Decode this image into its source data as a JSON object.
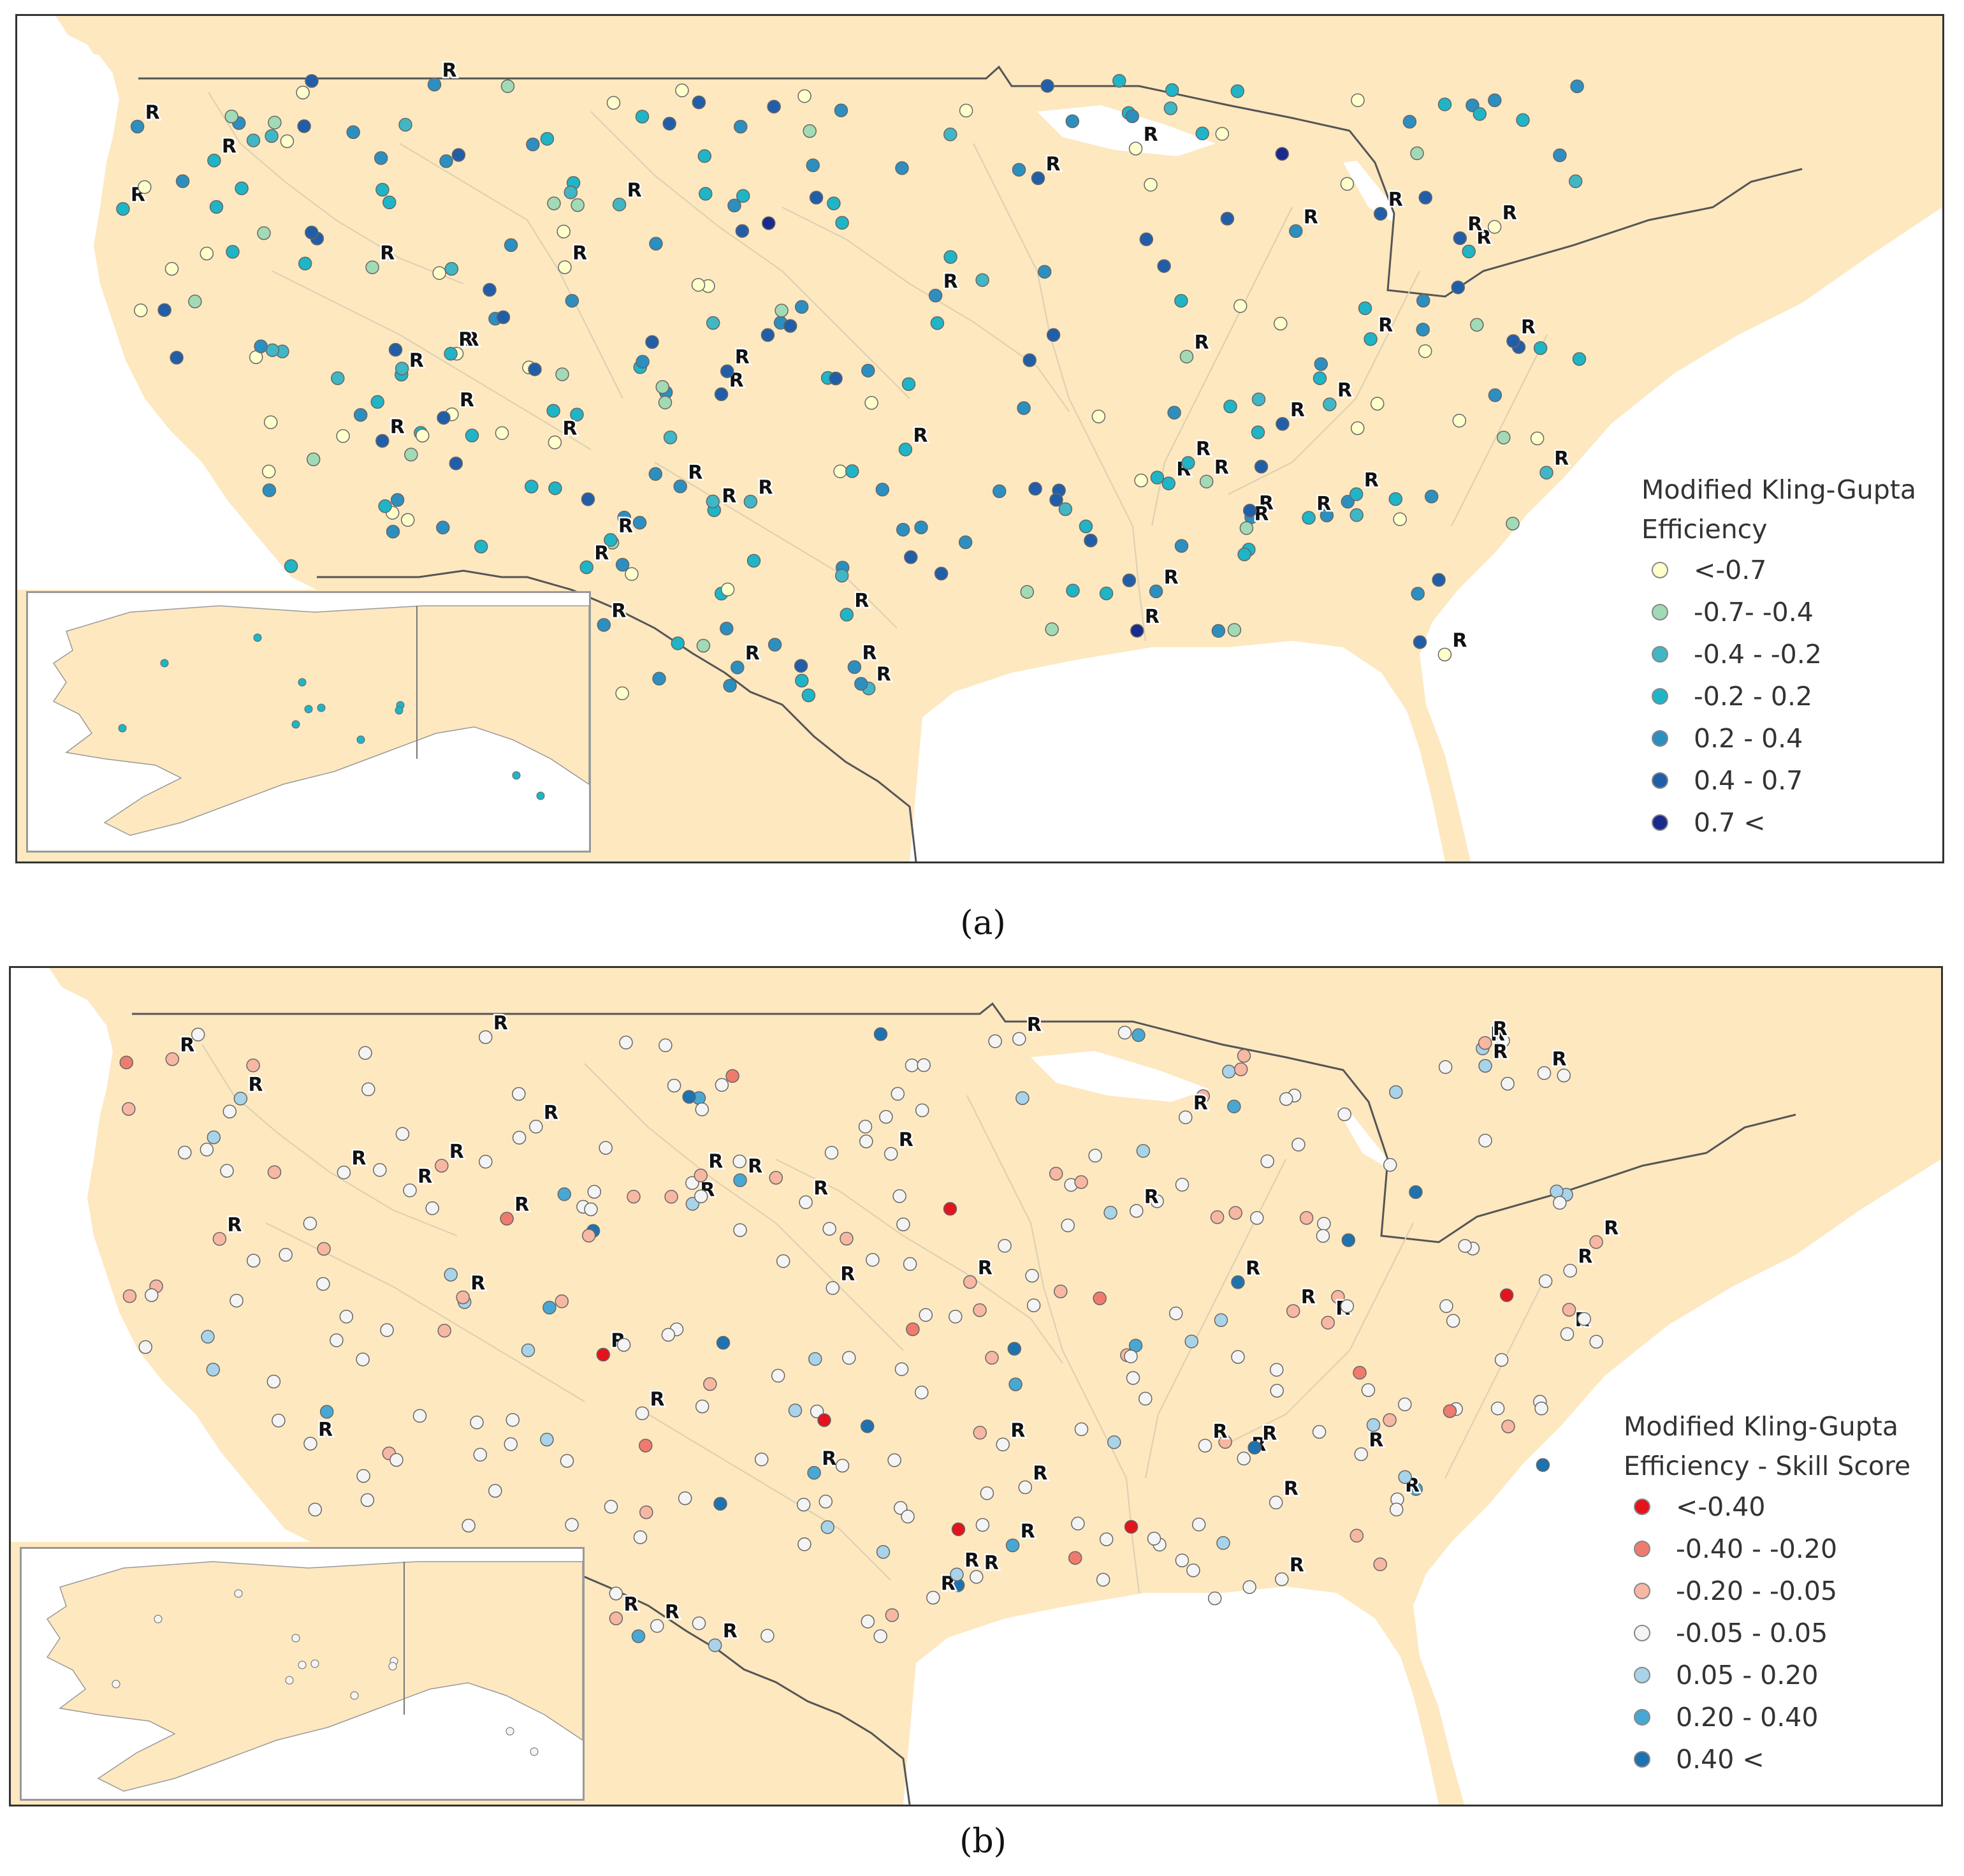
{
  "figure": {
    "panel_a": {
      "caption": "(a)",
      "legend_title_lines": [
        "Modified Kling-Gupta",
        "Efficiency"
      ],
      "legend": [
        {
          "label": "<-0.7",
          "color": "#ffffcc"
        },
        {
          "label": "-0.7- -0.4",
          "color": "#a1dab4"
        },
        {
          "label": "-0.4 - -0.2",
          "color": "#41b6c4"
        },
        {
          "label": "-0.2 - 0.2",
          "color": "#1fb5c6"
        },
        {
          "label": "0.2 - 0.4",
          "color": "#2c8fc0"
        },
        {
          "label": "0.4 - 0.7",
          "color": "#225ea8"
        },
        {
          "label": "0.7 <",
          "color": "#1a2a8c"
        }
      ],
      "reservoir_marker": "R"
    },
    "panel_b": {
      "caption": "(b)",
      "legend_title_lines": [
        "Modified Kling-Gupta",
        "Efficiency - Skill Score"
      ],
      "legend": [
        {
          "label": "<-0.40",
          "color": "#e3141d"
        },
        {
          "label": "-0.40 - -0.20",
          "color": "#ef7b6e"
        },
        {
          "label": "-0.20 - -0.05",
          "color": "#f7b7a3"
        },
        {
          "label": "-0.05 - 0.05",
          "color": "#f4f4f4"
        },
        {
          "label": "0.05 - 0.20",
          "color": "#a8d3e8"
        },
        {
          "label": "0.20 - 0.40",
          "color": "#48a8d3"
        },
        {
          "label": "0.40 <",
          "color": "#1f72b0"
        }
      ],
      "reservoir_marker": "R"
    },
    "colors": {
      "land": "#fde8c0",
      "water": "#ffffff",
      "border": "#555555",
      "rivers": "#d8cdb4"
    }
  }
}
